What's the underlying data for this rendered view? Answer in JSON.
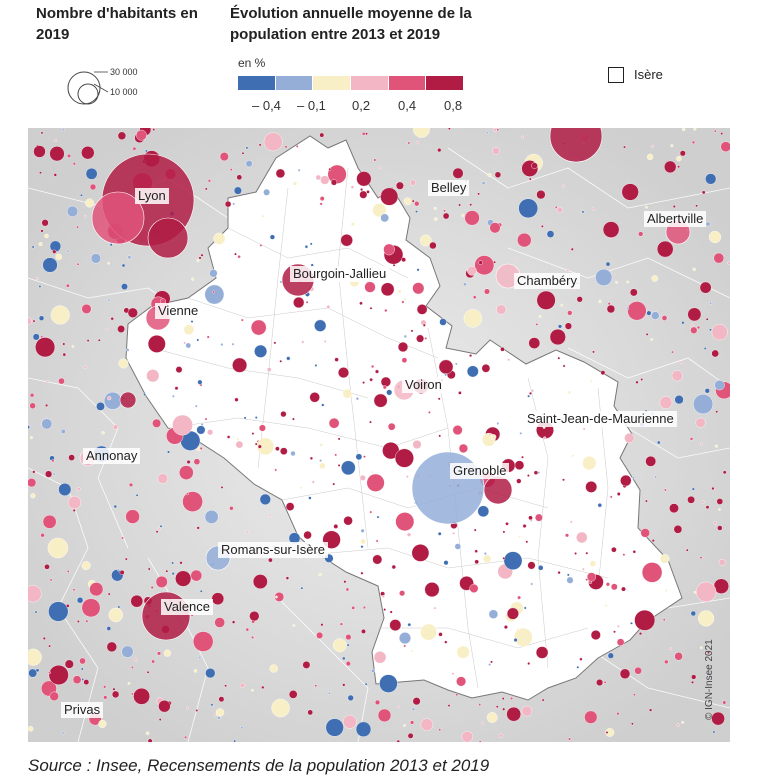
{
  "legend": {
    "size_title": "Nombre d'habitants en 2019",
    "size_values": [
      "30 000",
      "10 000"
    ],
    "color_title": "Évolution annuelle moyenne de la population entre 2013 et 2019",
    "unit": "en %",
    "classes": [
      "#3f6eb2",
      "#94aed8",
      "#f8efc6",
      "#f2b6c4",
      "#e0547a",
      "#b01c44"
    ],
    "ticks": [
      "– 0,4",
      "– 0,1",
      "0,2",
      "0,4",
      "0,8"
    ],
    "region_label": "Isère"
  },
  "map": {
    "background_color": "#dcdcdc",
    "region_fill": "#ffffff",
    "cities": [
      {
        "name": "Lyon"
      },
      {
        "name": "Belley"
      },
      {
        "name": "Albertville"
      },
      {
        "name": "Bourgoin-Jallieu"
      },
      {
        "name": "Chambéry"
      },
      {
        "name": "Vienne"
      },
      {
        "name": "Voiron"
      },
      {
        "name": "Saint-Jean-de-Maurienne"
      },
      {
        "name": "Annonay"
      },
      {
        "name": "Grenoble"
      },
      {
        "name": "Romans-sur-Isère"
      },
      {
        "name": "Valence"
      },
      {
        "name": "Privas"
      }
    ],
    "copyright": "© IGN-Insee 2021"
  },
  "source": "Source  : Insee, Recensements de la population 2013 et 2019"
}
